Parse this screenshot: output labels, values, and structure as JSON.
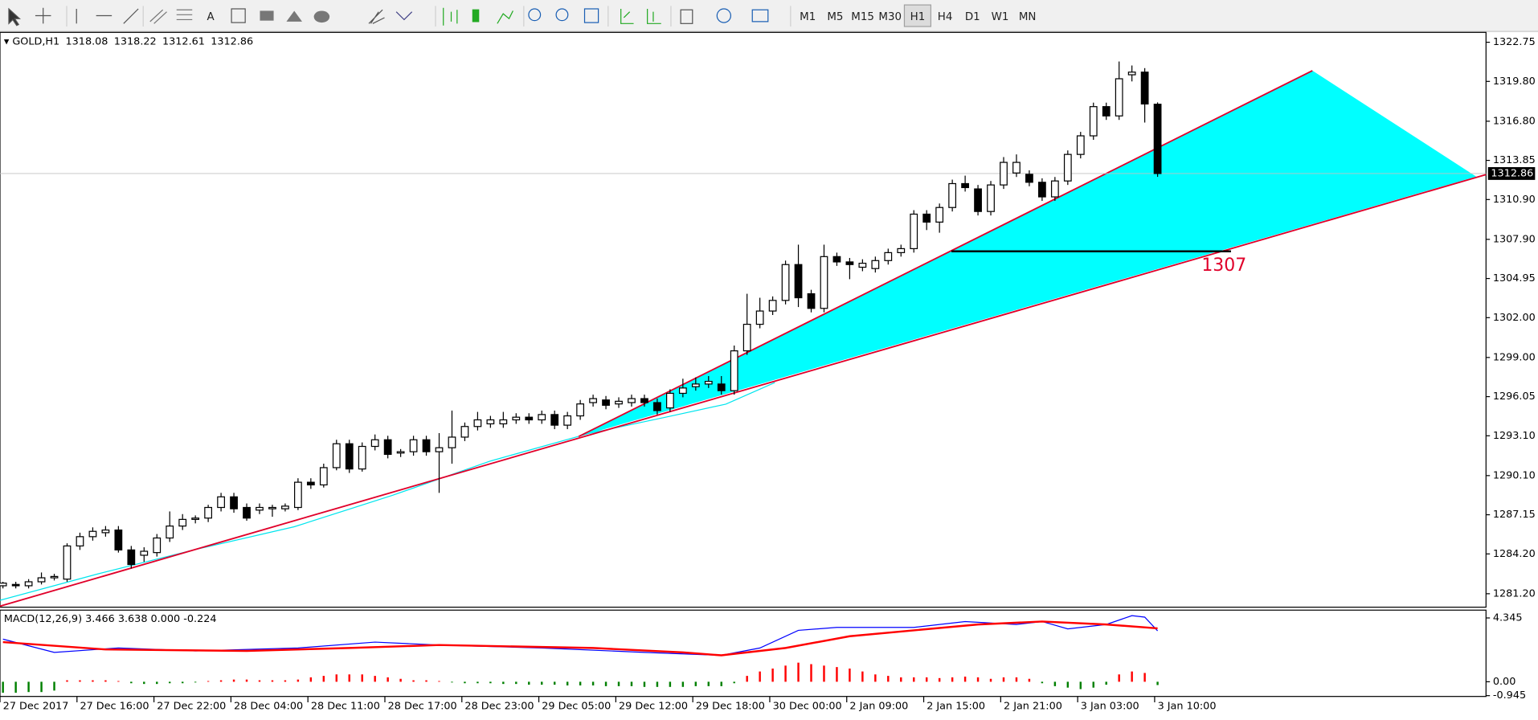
{
  "toolbar": {
    "timeframes": [
      "M1",
      "M5",
      "M15",
      "M30",
      "H1",
      "H4",
      "D1",
      "W1",
      "MN"
    ],
    "active": 4
  },
  "chart_data": [
    {
      "type": "candlestick",
      "symbol": "GOLD,H1",
      "up_color": "#ffffff",
      "down_color": "#000000",
      "candles": [
        [
          1281.8,
          1282.1,
          1281.6,
          1282.0
        ],
        [
          1281.9,
          1282.1,
          1281.6,
          1281.8
        ],
        [
          1281.8,
          1282.3,
          1281.6,
          1282.1
        ],
        [
          1282.1,
          1282.8,
          1281.9,
          1282.4
        ],
        [
          1282.4,
          1282.7,
          1282.2,
          1282.5
        ],
        [
          1282.3,
          1285.0,
          1282.1,
          1284.8
        ],
        [
          1284.8,
          1285.8,
          1284.5,
          1285.5
        ],
        [
          1285.5,
          1286.2,
          1285.2,
          1285.9
        ],
        [
          1285.8,
          1286.3,
          1285.5,
          1286.0
        ],
        [
          1286.0,
          1286.3,
          1284.3,
          1284.5
        ],
        [
          1284.5,
          1284.8,
          1283.1,
          1283.4
        ],
        [
          1284.1,
          1284.7,
          1283.6,
          1284.4
        ],
        [
          1284.3,
          1285.7,
          1284.0,
          1285.4
        ],
        [
          1285.4,
          1287.4,
          1285.1,
          1286.3
        ],
        [
          1286.3,
          1287.2,
          1286.0,
          1286.8
        ],
        [
          1286.8,
          1287.1,
          1286.5,
          1286.9
        ],
        [
          1286.9,
          1287.9,
          1286.6,
          1287.7
        ],
        [
          1287.7,
          1288.8,
          1287.4,
          1288.5
        ],
        [
          1288.5,
          1288.8,
          1287.3,
          1287.6
        ],
        [
          1287.7,
          1288.0,
          1286.7,
          1286.9
        ],
        [
          1287.5,
          1288.0,
          1287.2,
          1287.7
        ],
        [
          1287.6,
          1287.9,
          1287.0,
          1287.7
        ],
        [
          1287.6,
          1288.0,
          1287.4,
          1287.8
        ],
        [
          1287.7,
          1289.9,
          1287.5,
          1289.6
        ],
        [
          1289.6,
          1289.9,
          1289.1,
          1289.4
        ],
        [
          1289.4,
          1291.0,
          1289.2,
          1290.7
        ],
        [
          1290.7,
          1292.8,
          1290.5,
          1292.5
        ],
        [
          1292.5,
          1292.8,
          1290.3,
          1290.6
        ],
        [
          1290.6,
          1292.6,
          1290.4,
          1292.3
        ],
        [
          1292.3,
          1293.2,
          1292.0,
          1292.8
        ],
        [
          1292.8,
          1293.1,
          1291.4,
          1291.7
        ],
        [
          1291.8,
          1292.1,
          1291.5,
          1291.9
        ],
        [
          1291.9,
          1293.1,
          1291.6,
          1292.8
        ],
        [
          1292.8,
          1293.1,
          1291.6,
          1291.9
        ],
        [
          1291.9,
          1293.3,
          1288.8,
          1292.2
        ],
        [
          1292.2,
          1295.0,
          1291.0,
          1293.0
        ],
        [
          1293.0,
          1294.1,
          1292.7,
          1293.8
        ],
        [
          1293.8,
          1294.9,
          1293.5,
          1294.3
        ],
        [
          1294.0,
          1294.6,
          1293.7,
          1294.3
        ],
        [
          1294.0,
          1294.9,
          1293.7,
          1294.3
        ],
        [
          1294.3,
          1294.8,
          1294.0,
          1294.5
        ],
        [
          1294.5,
          1294.8,
          1294.0,
          1294.3
        ],
        [
          1294.3,
          1295.0,
          1294.0,
          1294.7
        ],
        [
          1294.7,
          1295.0,
          1293.6,
          1293.9
        ],
        [
          1293.9,
          1294.9,
          1293.6,
          1294.6
        ],
        [
          1294.6,
          1295.8,
          1294.3,
          1295.5
        ],
        [
          1295.6,
          1296.2,
          1295.3,
          1295.9
        ],
        [
          1295.8,
          1296.1,
          1295.1,
          1295.4
        ],
        [
          1295.5,
          1296.0,
          1295.2,
          1295.7
        ],
        [
          1295.6,
          1296.2,
          1295.3,
          1295.9
        ],
        [
          1295.9,
          1296.2,
          1295.3,
          1295.6
        ],
        [
          1295.6,
          1295.9,
          1294.7,
          1295.0
        ],
        [
          1295.2,
          1296.6,
          1294.9,
          1296.3
        ],
        [
          1296.3,
          1297.4,
          1296.0,
          1296.7
        ],
        [
          1296.8,
          1297.5,
          1296.5,
          1297.0
        ],
        [
          1297.0,
          1297.6,
          1296.7,
          1297.2
        ],
        [
          1297.0,
          1297.6,
          1296.2,
          1296.5
        ],
        [
          1296.5,
          1299.9,
          1296.2,
          1299.5
        ],
        [
          1299.5,
          1303.8,
          1299.2,
          1301.5
        ],
        [
          1301.5,
          1303.5,
          1301.2,
          1302.5
        ],
        [
          1302.5,
          1303.6,
          1302.2,
          1303.3
        ],
        [
          1303.3,
          1306.3,
          1303.0,
          1306.0
        ],
        [
          1306.0,
          1307.5,
          1302.8,
          1303.5
        ],
        [
          1303.8,
          1304.1,
          1302.4,
          1302.7
        ],
        [
          1302.7,
          1307.5,
          1302.4,
          1306.6
        ],
        [
          1306.6,
          1306.9,
          1305.9,
          1306.2
        ],
        [
          1306.2,
          1306.5,
          1304.9,
          1306.0
        ],
        [
          1305.8,
          1306.4,
          1305.5,
          1306.1
        ],
        [
          1305.7,
          1306.6,
          1305.4,
          1306.3
        ],
        [
          1306.3,
          1307.2,
          1306.0,
          1306.9
        ],
        [
          1306.9,
          1307.5,
          1306.6,
          1307.2
        ],
        [
          1307.2,
          1310.1,
          1306.9,
          1309.8
        ],
        [
          1309.8,
          1310.1,
          1308.6,
          1309.2
        ],
        [
          1309.2,
          1310.6,
          1308.4,
          1310.3
        ],
        [
          1310.3,
          1312.4,
          1310.0,
          1312.1
        ],
        [
          1312.1,
          1312.7,
          1311.5,
          1311.8
        ],
        [
          1311.7,
          1312.0,
          1309.7,
          1310.0
        ],
        [
          1310.0,
          1312.3,
          1309.7,
          1312.0
        ],
        [
          1312.0,
          1314.1,
          1311.7,
          1313.7
        ],
        [
          1312.9,
          1314.3,
          1312.6,
          1313.7
        ],
        [
          1312.8,
          1313.1,
          1311.9,
          1312.2
        ],
        [
          1312.2,
          1312.5,
          1310.8,
          1311.1
        ],
        [
          1311.1,
          1312.6,
          1310.8,
          1312.3
        ],
        [
          1312.3,
          1314.6,
          1312.0,
          1314.3
        ],
        [
          1314.3,
          1316.0,
          1314.0,
          1315.7
        ],
        [
          1315.7,
          1318.2,
          1315.4,
          1317.9
        ],
        [
          1317.9,
          1318.2,
          1316.9,
          1317.2
        ],
        [
          1317.2,
          1321.3,
          1316.9,
          1320.0
        ],
        [
          1320.3,
          1321.0,
          1319.8,
          1320.5
        ],
        [
          1320.5,
          1320.8,
          1316.7,
          1318.1
        ],
        [
          1318.08,
          1318.22,
          1312.61,
          1312.86
        ]
      ],
      "xlim": [
        -0.23,
        115.6
      ],
      "ylim": [
        1280.26,
        1323.42
      ],
      "yticks": [
        1322.75,
        {
          "value": 1319.8,
          "label": "1319.80"
        },
        {
          "value": 1316.8,
          "label": "1316.80"
        },
        1313.85,
        {
          "value": 1310.9,
          "label": "1310.90"
        },
        {
          "value": 1307.9,
          "label": "1307.90"
        },
        1304.95,
        {
          "value": 1302,
          "label": "1302.00"
        },
        {
          "value": 1299,
          "label": "1299.00"
        },
        1296.05,
        {
          "value": 1293.1,
          "label": "1293.10"
        },
        {
          "value": 1290.1,
          "label": "1290.10"
        },
        1287.15,
        {
          "value": 1284.2,
          "label": "1284.20"
        },
        {
          "value": 1281.2,
          "label": "1281.20"
        }
      ],
      "xticks": [
        {
          "value": 0,
          "label": "27 Dec 2017"
        },
        {
          "value": 6,
          "label": "27 Dec 16:00"
        },
        {
          "value": 12,
          "label": "27 Dec 22:00"
        },
        {
          "value": 18,
          "label": "28 Dec 04:00"
        },
        {
          "value": 24,
          "label": "28 Dec 11:00"
        },
        {
          "value": 30,
          "label": "28 Dec 17:00"
        },
        {
          "value": 36,
          "label": "28 Dec 23:00"
        },
        {
          "value": 42,
          "label": "29 Dec 05:00"
        },
        {
          "value": 48,
          "label": "29 Dec 12:00"
        },
        {
          "value": 54,
          "label": "29 Dec 18:00"
        },
        {
          "value": 60,
          "label": "30 Dec 00:00"
        },
        {
          "value": 66,
          "label": "2 Jan 09:00"
        },
        {
          "value": 72,
          "label": "2 Jan 15:00"
        },
        {
          "value": 78,
          "label": "2 Jan 21:00"
        },
        {
          "value": 84,
          "label": "3 Jan 03:00"
        },
        {
          "value": 90,
          "label": "3 Jan 10:00"
        }
      ],
      "current_price": 1312.86,
      "level": 1307
    },
    {
      "type": "macd",
      "title": "MACD(12,26,9) 3.466 3.638 0.000 -0.224",
      "up_color": "#ff0000",
      "down_color": "#008000",
      "histogram": [
        -0.75,
        -0.75,
        -0.7,
        -0.7,
        -0.6,
        0.1,
        0.1,
        0.1,
        0.1,
        0.05,
        -0.1,
        -0.15,
        -0.15,
        -0.1,
        -0.1,
        -0.05,
        0.05,
        0.1,
        0.15,
        0.15,
        0.1,
        0.1,
        0.1,
        0.15,
        0.3,
        0.4,
        0.5,
        0.5,
        0.5,
        0.4,
        0.3,
        0.2,
        0.1,
        0.1,
        0.05,
        -0.05,
        -0.1,
        -0.1,
        -0.1,
        -0.15,
        -0.15,
        -0.2,
        -0.2,
        -0.2,
        -0.25,
        -0.25,
        -0.25,
        -0.3,
        -0.3,
        -0.3,
        -0.35,
        -0.35,
        -0.35,
        -0.35,
        -0.3,
        -0.3,
        -0.3,
        -0.1,
        0.4,
        0.7,
        0.9,
        1.1,
        1.3,
        1.2,
        1.1,
        1.0,
        0.9,
        0.7,
        0.5,
        0.4,
        0.3,
        0.3,
        0.3,
        0.25,
        0.3,
        0.35,
        0.3,
        0.2,
        0.3,
        0.3,
        0.2,
        -0.1,
        -0.3,
        -0.4,
        -0.5,
        -0.4,
        -0.2,
        0.5,
        0.7,
        0.6,
        -0.224
      ],
      "lines": [
        {
          "color": "#0000ff",
          "x": [
            0,
            4,
            9,
            15,
            23,
            29,
            34,
            42,
            50,
            56,
            59,
            62,
            65,
            71,
            75,
            79,
            81,
            83,
            86,
            88,
            89,
            90
          ],
          "values": [
            2.9,
            2.0,
            2.3,
            2.1,
            2.3,
            2.7,
            2.5,
            2.3,
            2.0,
            1.8,
            2.3,
            3.5,
            3.7,
            3.7,
            4.1,
            3.9,
            4.1,
            3.6,
            3.9,
            4.5,
            4.4,
            3.466
          ]
        },
        {
          "color": "#ff0000",
          "x": [
            0,
            8,
            19,
            27,
            34,
            46,
            53,
            56,
            61,
            66,
            71,
            76,
            81,
            86,
            90
          ],
          "values": [
            2.7,
            2.2,
            2.1,
            2.3,
            2.5,
            2.3,
            2.0,
            1.8,
            2.3,
            3.1,
            3.5,
            3.9,
            4.1,
            3.9,
            3.638
          ]
        }
      ],
      "ylim": [
        -1.0,
        4.81
      ],
      "yticks": [
        4.345,
        {
          "value": 0,
          "label": "0.00"
        },
        -0.945
      ]
    }
  ]
}
